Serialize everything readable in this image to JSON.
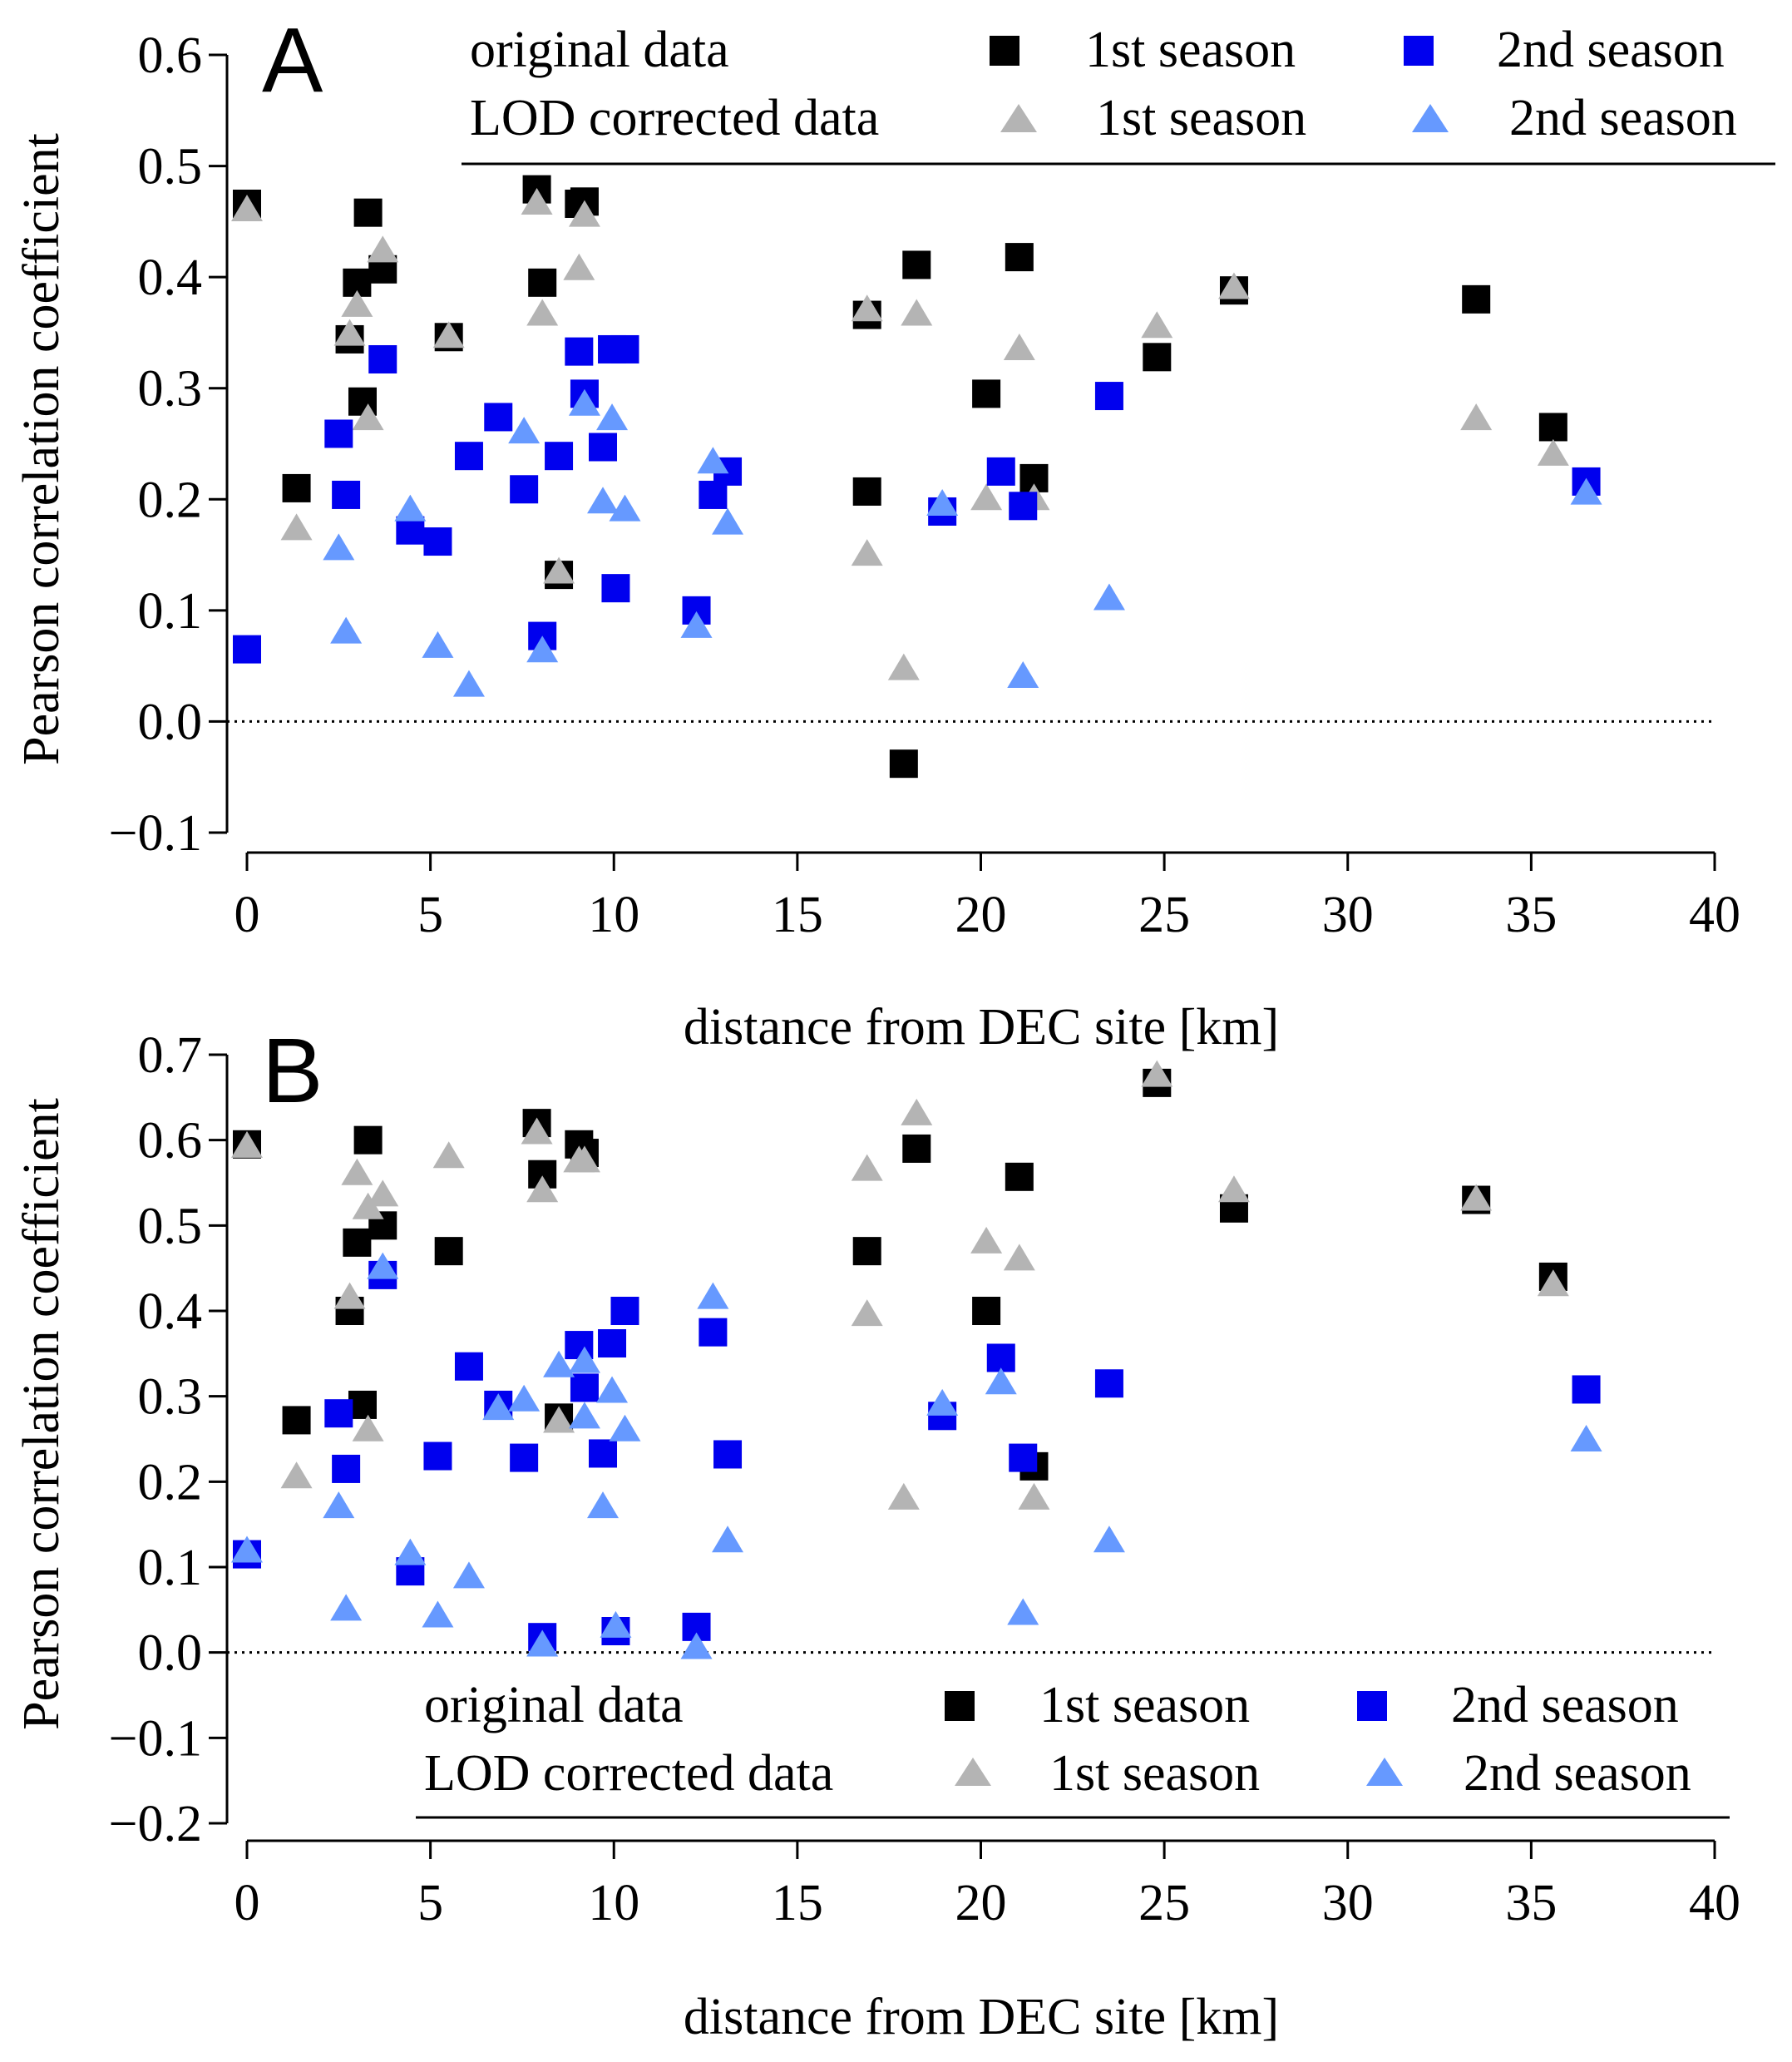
{
  "colors": {
    "orig_s1": "#000000",
    "orig_s2": "#0000ee",
    "lod_s1": "#b4b4b4",
    "lod_s2": "#6699ff"
  },
  "legend": {
    "row1_label": "original data",
    "row2_label": "LOD corrected data",
    "s1": "1st season",
    "s2": "2nd season"
  },
  "chart_data": [
    {
      "type": "scatter",
      "panel": "A",
      "xlabel": "distance from DEC site [km]",
      "ylabel": "Pearson correlation coefficient",
      "xlim": [
        0,
        40
      ],
      "ylim": [
        -0.1,
        0.6
      ],
      "xticks": [
        "0",
        "5",
        "10",
        "15",
        "20",
        "25",
        "30",
        "35",
        "40"
      ],
      "yticks": [
        "−0.1",
        "0.0",
        "0.1",
        "0.2",
        "0.3",
        "0.4",
        "0.5",
        "0.6"
      ],
      "zero_line": true,
      "legend_position": "top",
      "series": [
        {
          "name": "original data 1st season",
          "marker": "square",
          "color": "#000000",
          "points": [
            [
              0,
              0.466
            ],
            [
              1.35,
              0.21
            ],
            [
              2.8,
              0.344
            ],
            [
              3,
              0.395
            ],
            [
              3.15,
              0.288
            ],
            [
              3.3,
              0.458
            ],
            [
              3.7,
              0.407
            ],
            [
              5.5,
              0.346
            ],
            [
              7.9,
              0.479
            ],
            [
              8.05,
              0.395
            ],
            [
              8.5,
              0.132
            ],
            [
              9.05,
              0.466
            ],
            [
              9.2,
              0.468
            ],
            [
              16.9,
              0.366
            ],
            [
              16.9,
              0.207
            ],
            [
              17.9,
              -0.038
            ],
            [
              18.25,
              0.411
            ],
            [
              20.15,
              0.295
            ],
            [
              21.05,
              0.418
            ],
            [
              21.45,
              0.219
            ],
            [
              24.8,
              0.328
            ],
            [
              26.9,
              0.388
            ],
            [
              33.5,
              0.38
            ],
            [
              35.6,
              0.265
            ]
          ]
        },
        {
          "name": "original data 2nd season",
          "marker": "square",
          "color": "#0000ee",
          "points": [
            [
              0,
              0.065
            ],
            [
              2.5,
              0.259
            ],
            [
              2.7,
              0.204
            ],
            [
              3.7,
              0.326
            ],
            [
              4.45,
              0.172
            ],
            [
              5.2,
              0.162
            ],
            [
              6.05,
              0.239
            ],
            [
              6.85,
              0.274
            ],
            [
              7.55,
              0.209
            ],
            [
              8.05,
              0.077
            ],
            [
              8.5,
              0.239
            ],
            [
              9.05,
              0.333
            ],
            [
              9.2,
              0.295
            ],
            [
              9.7,
              0.247
            ],
            [
              9.95,
              0.335
            ],
            [
              10.05,
              0.12
            ],
            [
              10.3,
              0.335
            ],
            [
              12.25,
              0.1
            ],
            [
              12.7,
              0.204
            ],
            [
              13.1,
              0.225
            ],
            [
              18.95,
              0.189
            ],
            [
              20.55,
              0.225
            ],
            [
              21.15,
              0.194
            ],
            [
              23.5,
              0.293
            ],
            [
              36.5,
              0.216
            ]
          ]
        },
        {
          "name": "LOD corrected data 1st season",
          "marker": "triangle",
          "color": "#b4b4b4",
          "points": [
            [
              0,
              0.46
            ],
            [
              1.35,
              0.173
            ],
            [
              2.8,
              0.348
            ],
            [
              3,
              0.374
            ],
            [
              3.3,
              0.272
            ],
            [
              3.7,
              0.423
            ],
            [
              5.5,
              0.346
            ],
            [
              7.9,
              0.466
            ],
            [
              8.05,
              0.366
            ],
            [
              8.5,
              0.134
            ],
            [
              9.05,
              0.407
            ],
            [
              9.2,
              0.455
            ],
            [
              16.9,
              0.37
            ],
            [
              16.9,
              0.15
            ],
            [
              17.9,
              0.047
            ],
            [
              18.25,
              0.366
            ],
            [
              20.15,
              0.2
            ],
            [
              21.05,
              0.335
            ],
            [
              21.45,
              0.2
            ],
            [
              24.8,
              0.355
            ],
            [
              26.9,
              0.39
            ],
            [
              33.5,
              0.272
            ],
            [
              35.6,
              0.24
            ]
          ]
        },
        {
          "name": "LOD corrected data 2nd season",
          "marker": "triangle",
          "color": "#6699ff",
          "points": [
            [
              2.5,
              0.155
            ],
            [
              2.7,
              0.08
            ],
            [
              4.45,
              0.19
            ],
            [
              5.2,
              0.067
            ],
            [
              6.05,
              0.032
            ],
            [
              7.55,
              0.26
            ],
            [
              8.05,
              0.063
            ],
            [
              9.2,
              0.285
            ],
            [
              9.7,
              0.197
            ],
            [
              9.95,
              0.272
            ],
            [
              10.3,
              0.19
            ],
            [
              12.25,
              0.085
            ],
            [
              12.7,
              0.233
            ],
            [
              13.1,
              0.178
            ],
            [
              18.95,
              0.195
            ],
            [
              21.15,
              0.04
            ],
            [
              23.5,
              0.11
            ],
            [
              36.5,
              0.205
            ]
          ]
        }
      ]
    },
    {
      "type": "scatter",
      "panel": "B",
      "xlabel": "distance from DEC site [km]",
      "ylabel": "Pearson correlation coefficient",
      "xlim": [
        0,
        40
      ],
      "ylim": [
        -0.2,
        0.7
      ],
      "xticks": [
        "0",
        "5",
        "10",
        "15",
        "20",
        "25",
        "30",
        "35",
        "40"
      ],
      "yticks": [
        "−0.2",
        "−0.1",
        "0.0",
        "0.1",
        "0.2",
        "0.3",
        "0.4",
        "0.5",
        "0.6",
        "0.7"
      ],
      "zero_line": true,
      "legend_position": "bottom",
      "series": [
        {
          "name": "original data 1st season",
          "marker": "square",
          "color": "#000000",
          "points": [
            [
              0,
              0.595
            ],
            [
              1.35,
              0.272
            ],
            [
              2.8,
              0.4
            ],
            [
              3,
              0.48
            ],
            [
              3.15,
              0.29
            ],
            [
              3.3,
              0.6
            ],
            [
              3.7,
              0.5
            ],
            [
              5.5,
              0.47
            ],
            [
              7.9,
              0.62
            ],
            [
              8.05,
              0.56
            ],
            [
              8.5,
              0.275
            ],
            [
              9.05,
              0.595
            ],
            [
              9.2,
              0.585
            ],
            [
              16.9,
              0.47
            ],
            [
              18.25,
              0.59
            ],
            [
              20.15,
              0.4
            ],
            [
              21.05,
              0.557
            ],
            [
              21.45,
              0.218
            ],
            [
              24.8,
              0.667
            ],
            [
              26.9,
              0.52
            ],
            [
              33.5,
              0.53
            ],
            [
              35.6,
              0.44
            ]
          ]
        },
        {
          "name": "original data 2nd season",
          "marker": "square",
          "color": "#0000ee",
          "points": [
            [
              0,
              0.115
            ],
            [
              2.5,
              0.28
            ],
            [
              2.7,
              0.215
            ],
            [
              3.7,
              0.442
            ],
            [
              4.45,
              0.095
            ],
            [
              5.2,
              0.23
            ],
            [
              6.05,
              0.335
            ],
            [
              6.85,
              0.29
            ],
            [
              7.55,
              0.228
            ],
            [
              8.05,
              0.018
            ],
            [
              9.05,
              0.36
            ],
            [
              9.2,
              0.31
            ],
            [
              9.7,
              0.233
            ],
            [
              9.95,
              0.362
            ],
            [
              10.05,
              0.025
            ],
            [
              10.3,
              0.4
            ],
            [
              12.25,
              0.03
            ],
            [
              12.7,
              0.375
            ],
            [
              13.1,
              0.232
            ],
            [
              18.95,
              0.277
            ],
            [
              20.55,
              0.345
            ],
            [
              21.15,
              0.228
            ],
            [
              23.5,
              0.315
            ],
            [
              36.5,
              0.308
            ]
          ]
        },
        {
          "name": "LOD corrected data 1st season",
          "marker": "triangle",
          "color": "#b4b4b4",
          "points": [
            [
              0,
              0.592
            ],
            [
              1.35,
              0.205
            ],
            [
              2.8,
              0.415
            ],
            [
              3,
              0.56
            ],
            [
              3.3,
              0.52
            ],
            [
              3.7,
              0.535
            ],
            [
              3.3,
              0.26
            ],
            [
              5.5,
              0.58
            ],
            [
              7.9,
              0.608
            ],
            [
              8.05,
              0.54
            ],
            [
              8.5,
              0.27
            ],
            [
              9.05,
              0.575
            ],
            [
              9.2,
              0.575
            ],
            [
              16.9,
              0.565
            ],
            [
              16.9,
              0.395
            ],
            [
              17.9,
              0.18
            ],
            [
              18.25,
              0.63
            ],
            [
              20.15,
              0.48
            ],
            [
              21.05,
              0.46
            ],
            [
              21.45,
              0.18
            ],
            [
              24.8,
              0.675
            ],
            [
              26.9,
              0.54
            ],
            [
              33.5,
              0.53
            ],
            [
              35.6,
              0.43
            ]
          ]
        },
        {
          "name": "LOD corrected data 2nd season",
          "marker": "triangle",
          "color": "#6699ff",
          "points": [
            [
              0,
              0.118
            ],
            [
              2.5,
              0.17
            ],
            [
              2.7,
              0.05
            ],
            [
              3.7,
              0.45
            ],
            [
              4.45,
              0.115
            ],
            [
              5.2,
              0.042
            ],
            [
              6.05,
              0.088
            ],
            [
              6.85,
              0.285
            ],
            [
              7.55,
              0.295
            ],
            [
              8.05,
              0.008
            ],
            [
              8.5,
              0.335
            ],
            [
              9.2,
              0.34
            ],
            [
              9.2,
              0.275
            ],
            [
              9.7,
              0.17
            ],
            [
              9.95,
              0.305
            ],
            [
              10.05,
              0.03
            ],
            [
              10.3,
              0.26
            ],
            [
              12.25,
              0.005
            ],
            [
              12.7,
              0.415
            ],
            [
              13.1,
              0.13
            ],
            [
              18.95,
              0.29
            ],
            [
              20.55,
              0.315
            ],
            [
              21.15,
              0.045
            ],
            [
              23.5,
              0.13
            ],
            [
              36.5,
              0.248
            ]
          ]
        }
      ]
    }
  ]
}
